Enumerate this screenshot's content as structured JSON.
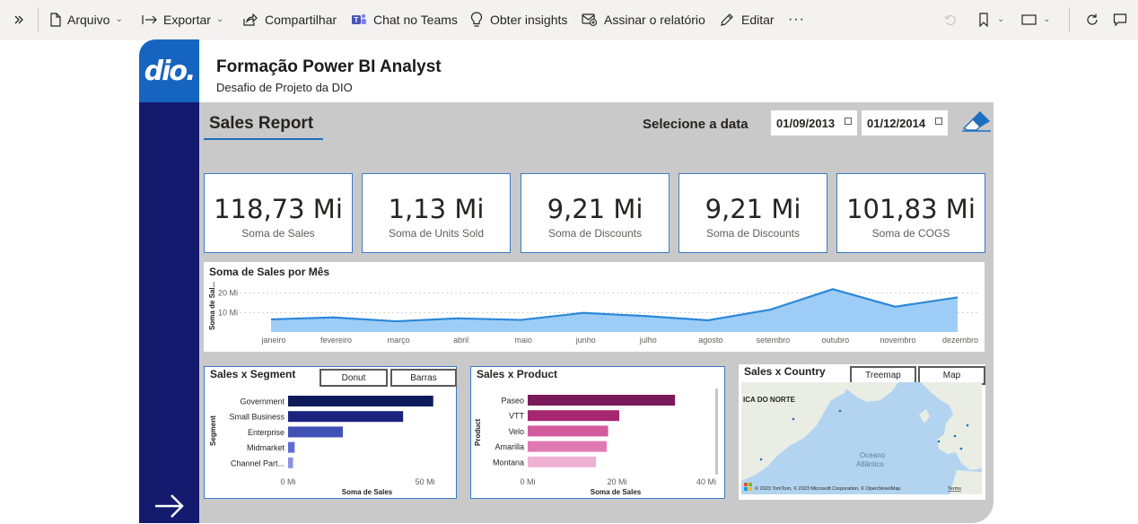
{
  "toolbar": {
    "expand_icon": "double-chevron-right-icon",
    "items": [
      {
        "label": "Arquivo",
        "icon": "file-icon"
      },
      {
        "label": "Exportar",
        "icon": "export-icon"
      },
      {
        "label": "Compartilhar",
        "icon": "share-icon"
      },
      {
        "label": "Chat no Teams",
        "icon": "teams-icon"
      },
      {
        "label": "Obter insights",
        "icon": "lightbulb-icon"
      },
      {
        "label": "Assinar o relatório",
        "icon": "subscribe-icon"
      },
      {
        "label": "Editar",
        "icon": "pencil-icon"
      }
    ],
    "more": "···"
  },
  "report": {
    "logo": "dio.",
    "title": "Formação Power BI Analyst",
    "subtitle": "Desafio de Projeto da DIO",
    "page_title": "Sales Report",
    "date_label": "Selecione a data",
    "date_start": "01/09/2013",
    "date_end": "01/12/2014"
  },
  "kpis": [
    {
      "value": "118,73 Mi",
      "label": "Soma de  Sales"
    },
    {
      "value": "1,13 Mi",
      "label": "Soma de Units Sold"
    },
    {
      "value": "9,21 Mi",
      "label": "Soma de Discounts"
    },
    {
      "value": "9,21 Mi",
      "label": "Soma de Discounts"
    },
    {
      "value": "101,83 Mi",
      "label": "Soma de COGS"
    }
  ],
  "colors": {
    "line": "#2b88d8",
    "area": "#8cc4f5",
    "segment": [
      "#0f1a5c",
      "#1a237e",
      "#3f51b5",
      "#5c6bd6",
      "#8a94e0"
    ],
    "product": [
      "#7b1a5a",
      "#a6266f",
      "#d45a9e",
      "#e07ab2",
      "#eeb1d2"
    ]
  },
  "chart_data": [
    {
      "type": "area",
      "title": "Soma de Sales por Mês",
      "ylabel": "Soma de Sal...",
      "categories": [
        "janeiro",
        "fevereiro",
        "março",
        "abril",
        "maio",
        "junho",
        "julho",
        "agosto",
        "setembro",
        "outubro",
        "novembro",
        "dezembro"
      ],
      "values": [
        6.5,
        7.5,
        5.5,
        7.0,
        6.2,
        9.8,
        8.2,
        6.0,
        11.5,
        22.0,
        13.0,
        17.8
      ],
      "y_ticks": [
        "10 Mi",
        "20 Mi"
      ],
      "ylim": [
        0,
        24
      ]
    },
    {
      "type": "bar",
      "title": "Sales x Segment",
      "buttons": [
        "Donut",
        "Barras"
      ],
      "ylabel": "Segment",
      "xlabel": "Soma de Sales",
      "categories": [
        "Government",
        "Small Business",
        "Enterprise",
        "Midmarket",
        "Channel Part..."
      ],
      "values": [
        53,
        42,
        20,
        2.4,
        1.8
      ],
      "x_ticks": [
        "0 Mi",
        "50 Mi"
      ],
      "xlim": [
        0,
        58
      ]
    },
    {
      "type": "bar",
      "title": "Sales x Product",
      "ylabel": "Product",
      "xlabel": "Soma de Sales",
      "categories": [
        "Paseo",
        "VTT",
        "Velo",
        "Amarilla",
        "Montana"
      ],
      "values": [
        33,
        20.5,
        18,
        17.7,
        15.3
      ],
      "x_ticks": [
        "0 Mi",
        "20 Mi",
        "40 Mi"
      ],
      "xlim": [
        0,
        40
      ]
    }
  ],
  "map_panel": {
    "title": "Sales x Country",
    "buttons": [
      "Treemap",
      "Map"
    ],
    "region_label": "ICA DO NORTE",
    "ocean_label_1": "Oceano",
    "ocean_label_2": "Atlântico",
    "credits": "© 2023 TomTom, © 2023 Microsoft Corporation, © OpenStreetMap",
    "terms": "Terms"
  }
}
